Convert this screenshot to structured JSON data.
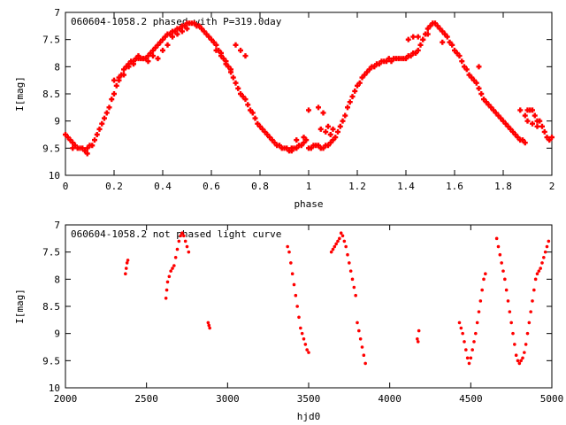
{
  "chart_data": [
    {
      "type": "scatter",
      "title": "060604-1058.2 phased with P=319.0day",
      "xlabel": "phase",
      "ylabel": "I[mag]",
      "xlim": [
        0,
        2
      ],
      "ylim": [
        10,
        7
      ],
      "y_inverted": true,
      "x_ticks": [
        "0",
        "0.2",
        "0.4",
        "0.6",
        "0.8",
        "1",
        "1.2",
        "1.4",
        "1.6",
        "1.8",
        "2"
      ],
      "x_tick_values": [
        0,
        0.2,
        0.4,
        0.6,
        0.8,
        1.0,
        1.2,
        1.4,
        1.6,
        1.8,
        2.0
      ],
      "y_ticks": [
        "7",
        "7.5",
        "8",
        "8.5",
        "9",
        "9.5",
        "10"
      ],
      "y_tick_values": [
        7,
        7.5,
        8,
        8.5,
        9,
        9.5,
        10
      ],
      "color": "#ff0000",
      "marker": "cross",
      "series": [
        {
          "x": [
            0.0,
            0.01,
            0.02,
            0.03,
            0.04,
            0.05,
            0.06,
            0.07,
            0.08,
            0.09,
            0.1,
            0.11,
            0.12,
            0.13,
            0.14,
            0.15,
            0.16,
            0.17,
            0.18,
            0.19,
            0.2,
            0.21,
            0.22,
            0.23,
            0.24,
            0.25,
            0.26,
            0.27,
            0.28,
            0.29,
            0.3,
            0.31,
            0.32,
            0.33,
            0.34,
            0.35,
            0.36,
            0.37,
            0.38,
            0.39,
            0.4,
            0.41,
            0.42,
            0.43,
            0.44,
            0.45,
            0.46,
            0.47,
            0.48,
            0.49,
            0.5,
            0.51,
            0.52,
            0.53,
            0.54,
            0.55,
            0.56,
            0.57,
            0.58,
            0.59,
            0.6,
            0.61,
            0.62,
            0.63,
            0.64,
            0.65,
            0.66,
            0.67,
            0.68,
            0.69,
            0.7,
            0.71,
            0.72,
            0.73,
            0.74,
            0.75,
            0.76,
            0.77,
            0.78,
            0.79,
            0.8,
            0.81,
            0.82,
            0.83,
            0.84,
            0.85,
            0.86,
            0.87,
            0.88,
            0.89,
            0.9,
            0.91,
            0.92,
            0.93,
            0.94,
            0.95,
            0.96,
            0.97,
            0.98,
            0.99,
            0.2,
            0.22,
            0.24,
            0.26,
            0.28,
            0.3,
            0.32,
            0.34,
            0.36,
            0.38,
            0.4,
            0.42,
            0.44,
            0.46,
            0.48,
            0.5,
            0.62,
            0.64,
            0.66,
            0.68,
            0.7,
            0.72,
            0.74,
            0.03,
            0.09,
            0.93,
            0.95,
            0.98
          ],
          "y": [
            9.25,
            9.3,
            9.35,
            9.4,
            9.45,
            9.5,
            9.5,
            9.5,
            9.55,
            9.5,
            9.45,
            9.45,
            9.35,
            9.25,
            9.15,
            9.05,
            8.95,
            8.85,
            8.75,
            8.6,
            8.5,
            8.35,
            8.25,
            8.15,
            8.05,
            8.0,
            7.95,
            7.9,
            7.9,
            7.85,
            7.85,
            7.85,
            7.85,
            7.85,
            7.8,
            7.75,
            7.7,
            7.65,
            7.6,
            7.55,
            7.5,
            7.45,
            7.4,
            7.4,
            7.35,
            7.35,
            7.3,
            7.3,
            7.25,
            7.25,
            7.2,
            7.2,
            7.2,
            7.2,
            7.25,
            7.25,
            7.3,
            7.35,
            7.4,
            7.45,
            7.5,
            7.55,
            7.6,
            7.7,
            7.75,
            7.85,
            7.9,
            8.0,
            8.1,
            8.2,
            8.3,
            8.4,
            8.5,
            8.55,
            8.6,
            8.7,
            8.8,
            8.85,
            8.95,
            9.05,
            9.1,
            9.15,
            9.2,
            9.25,
            9.3,
            9.35,
            9.4,
            9.45,
            9.45,
            9.5,
            9.5,
            9.5,
            9.55,
            9.55,
            9.5,
            9.5,
            9.45,
            9.45,
            9.4,
            9.35,
            8.25,
            8.2,
            8.15,
            8.0,
            7.95,
            7.8,
            7.85,
            7.9,
            7.8,
            7.85,
            7.7,
            7.6,
            7.45,
            7.4,
            7.35,
            7.3,
            7.7,
            7.8,
            7.95,
            8.05,
            7.6,
            7.7,
            7.8,
            9.5,
            9.6,
            9.5,
            9.35,
            9.3
          ]
        },
        {
          "x": [
            1.0,
            1.01,
            1.02,
            1.03,
            1.04,
            1.05,
            1.06,
            1.07,
            1.08,
            1.09,
            1.1,
            1.11,
            1.12,
            1.13,
            1.14,
            1.15,
            1.16,
            1.17,
            1.18,
            1.19,
            1.2,
            1.21,
            1.22,
            1.23,
            1.24,
            1.25,
            1.26,
            1.27,
            1.28,
            1.29,
            1.3,
            1.31,
            1.32,
            1.33,
            1.34,
            1.35,
            1.36,
            1.37,
            1.38,
            1.39,
            1.4,
            1.41,
            1.42,
            1.43,
            1.44,
            1.45,
            1.46,
            1.47,
            1.48,
            1.49,
            1.5,
            1.51,
            1.52,
            1.53,
            1.54,
            1.55,
            1.56,
            1.57,
            1.58,
            1.59,
            1.6,
            1.61,
            1.62,
            1.63,
            1.64,
            1.65,
            1.66,
            1.67,
            1.68,
            1.69,
            1.7,
            1.71,
            1.72,
            1.73,
            1.74,
            1.75,
            1.76,
            1.77,
            1.78,
            1.79,
            1.8,
            1.81,
            1.82,
            1.83,
            1.84,
            1.85,
            1.86,
            1.87,
            1.88,
            1.89,
            1.9,
            1.91,
            1.92,
            1.93,
            1.94,
            1.95,
            1.96,
            1.97,
            1.98,
            1.99,
            2.0,
            1.0,
            1.04,
            1.06,
            1.08,
            1.1,
            1.05,
            1.07,
            1.09,
            1.41,
            1.43,
            1.45,
            1.47,
            1.49,
            1.55,
            1.7,
            1.87,
            1.89,
            1.9,
            1.92,
            1.94
          ],
          "y": [
            9.5,
            9.5,
            9.45,
            9.45,
            9.45,
            9.5,
            9.5,
            9.45,
            9.45,
            9.4,
            9.35,
            9.3,
            9.2,
            9.1,
            9.0,
            8.9,
            8.75,
            8.65,
            8.55,
            8.45,
            8.35,
            8.3,
            8.2,
            8.15,
            8.1,
            8.05,
            8.0,
            8.0,
            7.95,
            7.95,
            7.9,
            7.9,
            7.9,
            7.85,
            7.9,
            7.85,
            7.85,
            7.85,
            7.85,
            7.85,
            7.85,
            7.8,
            7.8,
            7.75,
            7.75,
            7.7,
            7.6,
            7.5,
            7.4,
            7.3,
            7.25,
            7.2,
            7.2,
            7.25,
            7.3,
            7.35,
            7.4,
            7.45,
            7.55,
            7.6,
            7.7,
            7.75,
            7.8,
            7.9,
            8.0,
            8.05,
            8.15,
            8.2,
            8.25,
            8.3,
            8.4,
            8.5,
            8.6,
            8.65,
            8.7,
            8.75,
            8.8,
            8.85,
            8.9,
            8.95,
            9.0,
            9.05,
            9.1,
            9.15,
            9.2,
            9.25,
            9.3,
            9.35,
            9.35,
            9.4,
            8.8,
            8.8,
            8.8,
            8.9,
            9.0,
            9.0,
            9.1,
            9.2,
            9.3,
            9.35,
            9.3,
            8.8,
            8.75,
            8.85,
            9.1,
            9.15,
            9.15,
            9.2,
            9.25,
            7.5,
            7.45,
            7.45,
            7.5,
            7.4,
            7.55,
            8.0,
            8.8,
            8.9,
            9.0,
            9.05,
            9.1
          ]
        }
      ]
    },
    {
      "type": "scatter",
      "title": "060604-1058.2 not phased light curve",
      "xlabel": "hjd0",
      "ylabel": "I[mag]",
      "xlim": [
        2000,
        5000
      ],
      "ylim": [
        10,
        7
      ],
      "y_inverted": true,
      "x_ticks": [
        "2000",
        "2500",
        "3000",
        "3500",
        "4000",
        "4500",
        "5000"
      ],
      "x_tick_values": [
        2000,
        2500,
        3000,
        3500,
        4000,
        4500,
        5000
      ],
      "y_ticks": [
        "7",
        "7.5",
        "8",
        "8.5",
        "9",
        "9.5",
        "10"
      ],
      "y_tick_values": [
        7,
        7.5,
        8,
        8.5,
        9,
        9.5,
        10
      ],
      "color": "#ff0000",
      "marker": "dot",
      "series": [
        {
          "x": [
            2370,
            2375,
            2380,
            2385,
            2620,
            2625,
            2630,
            2640,
            2650,
            2660,
            2670,
            2680,
            2690,
            2700,
            2710,
            2720,
            2730,
            2740,
            2750,
            2760,
            2880,
            2885,
            2890,
            3370,
            3380,
            3390,
            3400,
            3410,
            3420,
            3430,
            3440,
            3450,
            3460,
            3470,
            3480,
            3490,
            3500,
            3640,
            3650,
            3660,
            3670,
            3680,
            3690,
            3700,
            3710,
            3720,
            3730,
            3740,
            3750,
            3760,
            3770,
            3780,
            3790,
            3800,
            3810,
            3820,
            3830,
            3840,
            3850,
            4170,
            4175,
            4180,
            4430,
            4440,
            4450,
            4460,
            4470,
            4480,
            4490,
            4500,
            4510,
            4520,
            4530,
            4540,
            4550,
            4560,
            4570,
            4580,
            4590,
            4660,
            4670,
            4680,
            4690,
            4700,
            4710,
            4720,
            4730,
            4740,
            4750,
            4760,
            4770,
            4780,
            4790,
            4800,
            4810,
            4820,
            4830,
            4840,
            4850,
            4860,
            4870,
            4880,
            4890,
            4900,
            4910,
            4920,
            4930,
            4940,
            4950,
            4960,
            4970,
            4980
          ],
          "y": [
            7.9,
            7.8,
            7.7,
            7.65,
            8.35,
            8.2,
            8.05,
            7.95,
            7.85,
            7.8,
            7.75,
            7.6,
            7.45,
            7.3,
            7.2,
            7.15,
            7.2,
            7.3,
            7.4,
            7.5,
            8.8,
            8.85,
            8.9,
            7.4,
            7.5,
            7.7,
            7.9,
            8.1,
            8.3,
            8.5,
            8.7,
            8.9,
            9.0,
            9.1,
            9.2,
            9.3,
            9.35,
            7.5,
            7.45,
            7.4,
            7.35,
            7.3,
            7.25,
            7.15,
            7.2,
            7.3,
            7.4,
            7.55,
            7.7,
            7.85,
            8.0,
            8.15,
            8.3,
            8.8,
            8.95,
            9.1,
            9.25,
            9.4,
            9.55,
            9.1,
            9.15,
            8.95,
            8.8,
            8.9,
            9.0,
            9.15,
            9.3,
            9.45,
            9.55,
            9.45,
            9.3,
            9.15,
            9.0,
            8.8,
            8.6,
            8.4,
            8.2,
            8.0,
            7.9,
            7.25,
            7.4,
            7.55,
            7.7,
            7.85,
            8.0,
            8.2,
            8.4,
            8.6,
            8.8,
            9.0,
            9.2,
            9.4,
            9.5,
            9.55,
            9.5,
            9.45,
            9.35,
            9.2,
            9.0,
            8.8,
            8.6,
            8.4,
            8.2,
            8.0,
            7.9,
            7.85,
            7.8,
            7.7,
            7.6,
            7.5,
            7.4,
            7.3
          ]
        }
      ]
    }
  ]
}
